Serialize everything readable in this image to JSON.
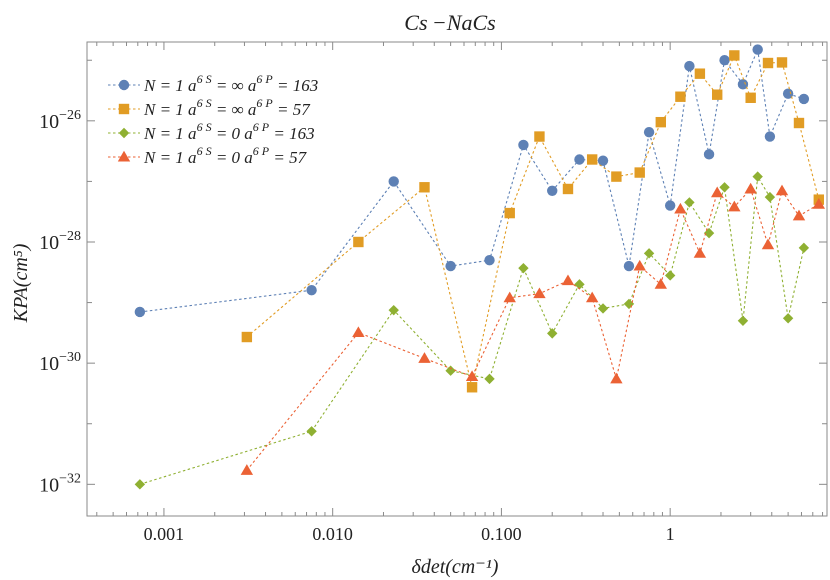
{
  "chart_data": {
    "type": "scatter",
    "title": "Cs −NaCs",
    "xlabel": "δdet(cm⁻¹)",
    "ylabel": "KPA(cm⁵)",
    "x_scale": "log",
    "y_scale": "log",
    "xlim": [
      0.00035,
      8.5
    ],
    "ylim": [
      3e-33,
      2e-25
    ],
    "x_ticks": [
      {
        "value": 0.001,
        "label": "0.001"
      },
      {
        "value": 0.01,
        "label": "0.010"
      },
      {
        "value": 0.1,
        "label": "0.100"
      },
      {
        "value": 1,
        "label": "1"
      }
    ],
    "y_ticks": [
      {
        "value": 1e-26,
        "label": "10",
        "exp": "−26"
      },
      {
        "value": 1e-28,
        "label": "10",
        "exp": "−28"
      },
      {
        "value": 1e-30,
        "label": "10",
        "exp": "−30"
      },
      {
        "value": 1e-32,
        "label": "10",
        "exp": "−32"
      }
    ],
    "grid": false,
    "legend_position": "top-left",
    "series": [
      {
        "name": "N = 1 a6S = ∞ a6P = 163",
        "legend": {
          "main": "N = 1 a",
          "sup1": "6 S",
          "mid": " = ∞ a",
          "sup2": "6 P",
          "end": " = 163"
        },
        "marker": "circle",
        "color": "#5e81b5",
        "x": [
          0.00072,
          0.0075,
          0.023,
          0.05,
          0.085,
          0.135,
          0.2,
          0.29,
          0.4,
          0.57,
          0.75,
          1.0,
          1.3,
          1.7,
          2.1,
          2.7,
          3.3,
          3.9,
          5.0,
          6.2
        ],
        "y": [
          7e-30,
          1.6e-29,
          1e-27,
          4e-29,
          5e-29,
          4e-27,
          7e-28,
          2.3e-27,
          2.2e-27,
          4e-29,
          6.5e-27,
          4e-28,
          8e-26,
          2.8e-27,
          1e-25,
          4e-26,
          1.5e-25,
          5.5e-27,
          2.8e-26,
          2.3e-26
        ]
      },
      {
        "name": "N = 1 a6S = ∞ a6P = 57",
        "legend": {
          "main": "N = 1 a",
          "sup1": "6 S",
          "mid": " = ∞ a",
          "sup2": "6 P",
          "end": " = 57"
        },
        "marker": "square",
        "color": "#e19c24",
        "x": [
          0.0031,
          0.0142,
          0.035,
          0.067,
          0.112,
          0.168,
          0.248,
          0.345,
          0.48,
          0.66,
          0.88,
          1.15,
          1.5,
          1.9,
          2.4,
          3.0,
          3.8,
          4.6,
          5.8,
          7.6
        ],
        "y": [
          2.7e-30,
          1e-28,
          8e-28,
          4e-31,
          3e-28,
          5.5e-27,
          7.5e-28,
          2.3e-27,
          1.2e-27,
          1.4e-27,
          9.5e-27,
          2.5e-26,
          6e-26,
          2.7e-26,
          1.2e-25,
          2.4e-26,
          9e-26,
          9.2e-26,
          9.2e-27,
          5e-28
        ]
      },
      {
        "name": "N = 1 a6S = 0 a6P = 163",
        "legend": {
          "main": "N = 1 a",
          "sup1": "6 S",
          "mid": " = 0 a",
          "sup2": "6 P",
          "end": " = 163"
        },
        "marker": "diamond",
        "color": "#8fb032",
        "x": [
          0.00072,
          0.0075,
          0.023,
          0.05,
          0.085,
          0.135,
          0.2,
          0.29,
          0.4,
          0.57,
          0.75,
          1.0,
          1.3,
          1.7,
          2.1,
          2.7,
          3.3,
          3.9,
          5.0,
          6.2
        ],
        "y": [
          1e-32,
          7.5e-32,
          7.5e-30,
          7.5e-31,
          5.5e-31,
          3.7e-29,
          3.1e-30,
          2e-29,
          8e-30,
          9.5e-30,
          6.5e-29,
          2.8e-29,
          4.5e-28,
          1.4e-28,
          8e-28,
          5e-30,
          1.2e-27,
          5.5e-28,
          5.5e-30,
          8e-29
        ]
      },
      {
        "name": "N = 1 a6S = 0 a6P = 57",
        "legend": {
          "main": "N = 1 a",
          "sup1": "6 S",
          "mid": " = 0 a",
          "sup2": "6 P",
          "end": " = 57"
        },
        "marker": "triangle",
        "color": "#eb6235",
        "x": [
          0.0031,
          0.0142,
          0.035,
          0.067,
          0.112,
          0.168,
          0.248,
          0.345,
          0.48,
          0.66,
          0.88,
          1.15,
          1.5,
          1.9,
          2.4,
          3.0,
          3.8,
          4.6,
          5.8,
          7.6
        ],
        "y": [
          1.7e-32,
          3.2e-30,
          1.2e-30,
          6e-31,
          1.2e-29,
          1.4e-29,
          2.3e-29,
          1.2e-29,
          5.5e-31,
          4e-29,
          2e-29,
          3.5e-28,
          6.5e-29,
          6.5e-28,
          3.8e-28,
          7.5e-28,
          9e-29,
          7e-28,
          2.7e-28,
          4.2e-28
        ]
      }
    ]
  }
}
